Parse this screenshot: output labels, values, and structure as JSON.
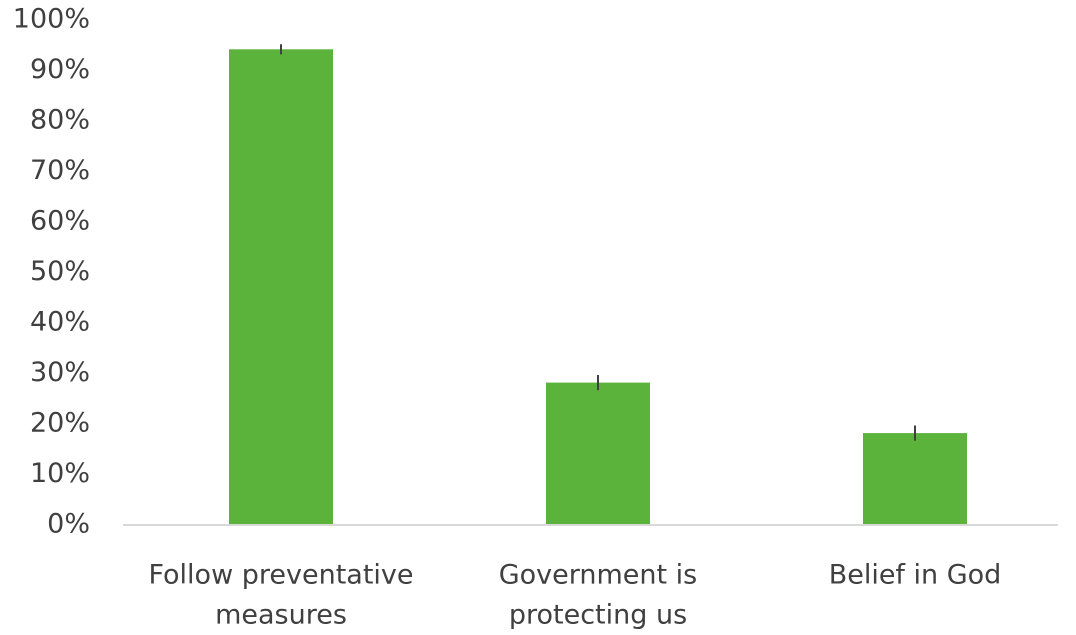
{
  "chart_data": {
    "type": "bar",
    "categories": [
      [
        "Follow preventative",
        "measures"
      ],
      [
        "Government is",
        "protecting us"
      ],
      [
        "Belief in God"
      ]
    ],
    "values": [
      94,
      28,
      18
    ],
    "error": [
      1,
      1.5,
      1.5
    ],
    "yticks": [
      "0%",
      "10%",
      "20%",
      "30%",
      "40%",
      "50%",
      "60%",
      "70%",
      "80%",
      "90%",
      "100%"
    ],
    "ylim": [
      0,
      100
    ],
    "grid": false,
    "bar_color": "#5bb33c",
    "error_color": "#404040",
    "axis_color": "#d9d9d9"
  }
}
